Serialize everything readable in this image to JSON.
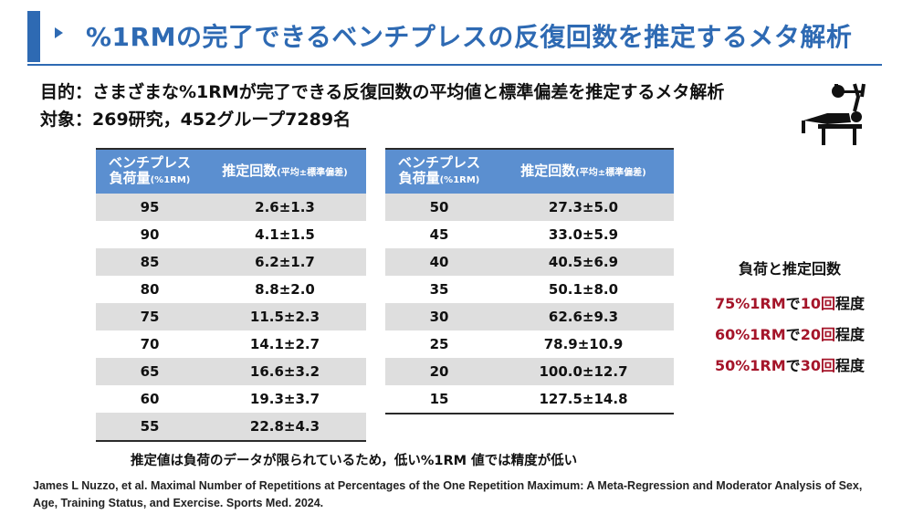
{
  "title": "%1RMの完了できるベンチプレスの反復回数を推定するメタ解析",
  "purpose_line": "目的：さまざまな%1RMが完了できる反復回数の平均値と標準偏差を推定するメタ解析",
  "subject_line": "対象：269研究，452グループ7289名",
  "table": {
    "header_load": "ベンチプレス",
    "header_load_line2": "負荷量",
    "header_load_unit": "(%1RM)",
    "header_reps": "推定回数",
    "header_reps_note": "(平均±標準偏差)",
    "left_rows": [
      {
        "load": "95",
        "reps": "2.6±1.3"
      },
      {
        "load": "90",
        "reps": "4.1±1.5"
      },
      {
        "load": "85",
        "reps": "6.2±1.7"
      },
      {
        "load": "80",
        "reps": "8.8±2.0"
      },
      {
        "load": "75",
        "reps": "11.5±2.3"
      },
      {
        "load": "70",
        "reps": "14.1±2.7"
      },
      {
        "load": "65",
        "reps": "16.6±3.2"
      },
      {
        "load": "60",
        "reps": "19.3±3.7"
      },
      {
        "load": "55",
        "reps": "22.8±4.3"
      }
    ],
    "right_rows": [
      {
        "load": "50",
        "reps": "27.3±5.0"
      },
      {
        "load": "45",
        "reps": "33.0±5.9"
      },
      {
        "load": "40",
        "reps": "40.5±6.9"
      },
      {
        "load": "35",
        "reps": "50.1±8.0"
      },
      {
        "load": "30",
        "reps": "62.6±9.3"
      },
      {
        "load": "25",
        "reps": "78.9±10.9"
      },
      {
        "load": "20",
        "reps": "100.0±12.7"
      },
      {
        "load": "15",
        "reps": "127.5±14.8"
      }
    ]
  },
  "summary": {
    "title": "負荷と推定回数",
    "items": [
      {
        "pct": "75%1RM",
        "de": "で",
        "count": "10回",
        "suffix": "程度"
      },
      {
        "pct": "60%1RM",
        "de": "で",
        "count": "20回",
        "suffix": "程度"
      },
      {
        "pct": "50%1RM",
        "de": "で",
        "count": "30回",
        "suffix": "程度"
      }
    ]
  },
  "note": "推定値は負荷のデータが限られているため，低い%1RM 値では精度が低い",
  "citation": "James L Nuzzo, et al. Maximal Number of Repetitions at Percentages of the One Repetition Maximum: A Meta-Regression and Moderator Analysis of Sex, Age, Training Status, and Exercise. Sports Med. 2024.",
  "icon": "bench-press-icon",
  "colors": {
    "accent": "#2e6ab3",
    "header": "#5b8fd0",
    "highlight": "#a5152a",
    "stripe": "#dedede"
  }
}
